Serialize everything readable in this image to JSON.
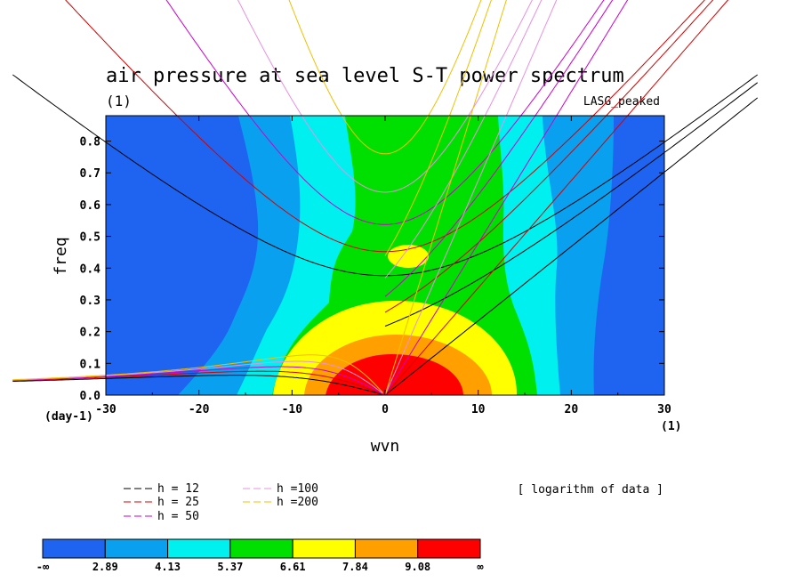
{
  "chart_data": {
    "type": "heatmap",
    "title": "air pressure at sea level S-T power spectrum",
    "subtitle_left": "(1)",
    "subtitle_right": "LASG_peaked",
    "xlabel": "wvn",
    "ylabel": "freq",
    "x_unit": "(1)",
    "y_unit": "(day-1)",
    "xlim": [
      -30,
      30
    ],
    "ylim": [
      0,
      0.88
    ],
    "x_ticks": [
      -30,
      -20,
      -10,
      0,
      10,
      20,
      30
    ],
    "y_ticks": [
      0.0,
      0.1,
      0.2,
      0.3,
      0.4,
      0.5,
      0.6,
      0.7,
      0.8
    ],
    "scale_note": "[ logarithm of data ]",
    "dispersion_curves": [
      {
        "label": "h = 12",
        "h": 12,
        "color": "#000000"
      },
      {
        "label": "h = 25",
        "h": 25,
        "color": "#d40000"
      },
      {
        "label": "h = 50",
        "h": 50,
        "color": "#cc00cc"
      },
      {
        "label": "h =100",
        "h": 100,
        "color": "#e890e0"
      },
      {
        "label": "h =200",
        "h": 200,
        "color": "#f0c000"
      }
    ],
    "colorbar": {
      "colors": [
        "#1e64f0",
        "#0aa0f0",
        "#00f0f0",
        "#00e000",
        "#ffff00",
        "#ffa000",
        "#ff0000"
      ],
      "levels": [
        "-∞",
        "2.89",
        "4.13",
        "5.37",
        "6.61",
        "7.84",
        "9.08",
        "∞"
      ]
    }
  }
}
